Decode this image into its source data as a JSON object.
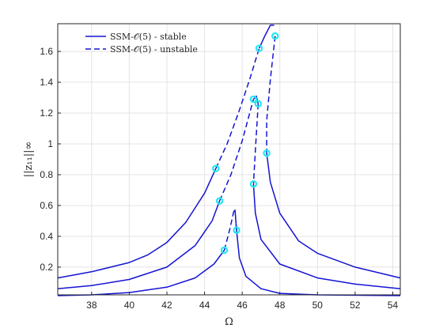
{
  "chart_data": {
    "type": "line",
    "xlabel": "Ω",
    "ylabel": "||z₁₁||∞",
    "xlim": [
      36.2,
      54.4
    ],
    "ylim": [
      0.02,
      1.78
    ],
    "xticks": [
      38,
      40,
      42,
      44,
      46,
      48,
      50,
      52,
      54
    ],
    "yticks": [
      0.2,
      0.4,
      0.6,
      0.8,
      1.0,
      1.2,
      1.4,
      1.6
    ],
    "ytick_labels": [
      "0.2",
      "0.4",
      "0.6",
      "0.8",
      "1",
      "1.2",
      "1.4",
      "1.6"
    ],
    "grid": true,
    "legend_position": "top-left",
    "line_color": "#1414d2",
    "marker_color": "#22e8ee",
    "legend": [
      {
        "label": "SSM-𝒪(5) - stable",
        "style": "solid"
      },
      {
        "label": "SSM-𝒪(5) - unstable",
        "style": "dashed"
      }
    ],
    "series": [
      {
        "style": "solid",
        "points": [
          [
            36.2,
            0.13
          ],
          [
            38,
            0.17
          ],
          [
            40,
            0.23
          ],
          [
            41,
            0.28
          ],
          [
            42,
            0.36
          ],
          [
            43,
            0.49
          ],
          [
            44,
            0.68
          ],
          [
            44.6,
            0.84
          ]
        ]
      },
      {
        "style": "dashed",
        "points": [
          [
            44.6,
            0.84
          ],
          [
            45.2,
            1.0
          ],
          [
            45.8,
            1.2
          ],
          [
            46.4,
            1.42
          ],
          [
            46.9,
            1.62
          ]
        ]
      },
      {
        "style": "solid",
        "points": [
          [
            46.9,
            1.62
          ],
          [
            47.2,
            1.7
          ],
          [
            47.5,
            1.77
          ],
          [
            47.7,
            1.77
          ]
        ]
      },
      {
        "style": "dashed",
        "points": [
          [
            47.75,
            1.7
          ],
          [
            47.5,
            1.42
          ],
          [
            47.3,
            1.15
          ],
          [
            47.3,
            0.94
          ]
        ]
      },
      {
        "style": "solid",
        "points": [
          [
            47.3,
            0.94
          ],
          [
            47.5,
            0.75
          ],
          [
            48,
            0.55
          ],
          [
            49,
            0.37
          ],
          [
            50,
            0.29
          ],
          [
            52,
            0.2
          ],
          [
            54.4,
            0.13
          ]
        ]
      },
      {
        "style": "solid",
        "points": [
          [
            36.2,
            0.06
          ],
          [
            38,
            0.08
          ],
          [
            40,
            0.12
          ],
          [
            42,
            0.2
          ],
          [
            43.5,
            0.34
          ],
          [
            44.4,
            0.5
          ],
          [
            44.8,
            0.63
          ]
        ]
      },
      {
        "style": "dashed",
        "points": [
          [
            44.8,
            0.63
          ],
          [
            45.4,
            0.8
          ],
          [
            46,
            1.02
          ],
          [
            46.6,
            1.29
          ]
        ]
      },
      {
        "style": "solid",
        "points": [
          [
            46.6,
            1.29
          ],
          [
            46.75,
            1.31
          ],
          [
            46.85,
            1.26
          ]
        ]
      },
      {
        "style": "dashed",
        "points": [
          [
            46.85,
            1.26
          ],
          [
            46.72,
            1.0
          ],
          [
            46.6,
            0.74
          ]
        ]
      },
      {
        "style": "solid",
        "points": [
          [
            46.6,
            0.74
          ],
          [
            46.7,
            0.55
          ],
          [
            47,
            0.38
          ],
          [
            48,
            0.22
          ],
          [
            50,
            0.13
          ],
          [
            52,
            0.09
          ],
          [
            54.4,
            0.06
          ]
        ]
      },
      {
        "style": "solid",
        "points": [
          [
            36.2,
            0.015
          ],
          [
            38,
            0.02
          ],
          [
            40,
            0.035
          ],
          [
            42,
            0.07
          ],
          [
            43.5,
            0.13
          ],
          [
            44.5,
            0.22
          ],
          [
            45.05,
            0.31
          ]
        ]
      },
      {
        "style": "dashed",
        "points": [
          [
            45.05,
            0.31
          ],
          [
            45.35,
            0.45
          ],
          [
            45.55,
            0.56
          ]
        ]
      },
      {
        "style": "solid",
        "points": [
          [
            45.55,
            0.56
          ],
          [
            45.62,
            0.57
          ],
          [
            45.7,
            0.44
          ]
        ]
      },
      {
        "style": "dashed",
        "points": [
          [
            45.7,
            0.44
          ],
          [
            45.66,
            0.5
          ]
        ]
      },
      {
        "style": "solid",
        "points": [
          [
            45.7,
            0.44
          ],
          [
            45.85,
            0.26
          ],
          [
            46.2,
            0.14
          ],
          [
            47,
            0.06
          ],
          [
            48,
            0.03
          ],
          [
            50,
            0.02
          ],
          [
            54.4,
            0.015
          ]
        ]
      }
    ],
    "markers": [
      [
        44.6,
        0.84
      ],
      [
        46.9,
        1.62
      ],
      [
        47.75,
        1.7
      ],
      [
        47.3,
        0.94
      ],
      [
        44.8,
        0.63
      ],
      [
        46.6,
        1.29
      ],
      [
        46.85,
        1.26
      ],
      [
        46.6,
        0.74
      ],
      [
        45.05,
        0.31
      ],
      [
        45.7,
        0.44
      ]
    ]
  }
}
